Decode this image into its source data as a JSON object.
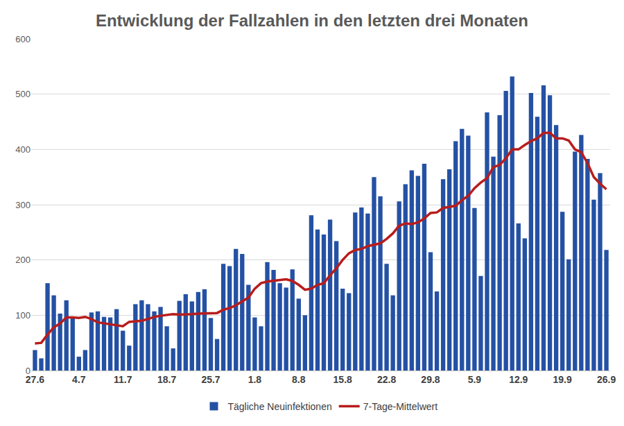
{
  "chart_data": {
    "type": "bar",
    "title": "Entwicklung der Fallzahlen in den letzten drei Monaten",
    "categories": [
      "27.6",
      null,
      null,
      null,
      null,
      null,
      null,
      "4.7",
      null,
      null,
      null,
      null,
      null,
      null,
      "11.7",
      null,
      null,
      null,
      null,
      null,
      null,
      "18.7",
      null,
      null,
      null,
      null,
      null,
      null,
      "25.7",
      null,
      null,
      null,
      null,
      null,
      null,
      "1.8",
      null,
      null,
      null,
      null,
      null,
      null,
      "8.8",
      null,
      null,
      null,
      null,
      null,
      null,
      "15.8",
      null,
      null,
      null,
      null,
      null,
      null,
      "22.8",
      null,
      null,
      null,
      null,
      null,
      null,
      "29.8",
      null,
      null,
      null,
      null,
      null,
      null,
      "5.9",
      null,
      null,
      null,
      null,
      null,
      null,
      "12.9",
      null,
      null,
      null,
      null,
      null,
      null,
      "19.9",
      null,
      null,
      null,
      null,
      null,
      null,
      "26.9"
    ],
    "series": [
      {
        "name": "Tägliche Neuinfektionen",
        "type": "bar",
        "color": "#2451a4",
        "values": [
          37,
          22,
          158,
          136,
          103,
          127,
          95,
          25,
          37,
          105,
          107,
          97,
          96,
          111,
          72,
          45,
          120,
          127,
          120,
          107,
          115,
          80,
          40,
          126,
          138,
          125,
          142,
          147,
          95,
          57,
          193,
          189,
          220,
          211,
          155,
          96,
          80,
          196,
          182,
          158,
          150,
          183,
          130,
          100,
          281,
          255,
          246,
          273,
          234,
          148,
          140,
          286,
          295,
          284,
          350,
          315,
          193,
          136,
          306,
          337,
          362,
          352,
          374,
          214,
          143,
          346,
          364,
          415,
          437,
          425,
          294,
          171,
          467,
          387,
          462,
          506,
          532,
          266,
          239,
          502,
          459,
          516,
          498,
          444,
          287,
          201,
          396,
          426,
          383,
          309,
          357,
          218
        ]
      },
      {
        "name": "7-Tage-Mittelwert",
        "type": "line",
        "color": "#b81c1c",
        "line_style": "solid",
        "values": [
          49,
          50,
          65,
          78,
          85,
          96,
          96,
          95,
          97,
          93,
          87,
          85,
          83,
          82,
          80,
          88,
          89,
          90,
          93,
          97,
          99,
          100,
          102,
          101,
          101,
          102,
          103,
          103,
          104,
          104,
          110,
          113,
          118,
          125,
          132,
          148,
          158,
          161,
          162,
          164,
          165,
          162,
          155,
          146,
          148,
          155,
          158,
          172,
          185,
          200,
          212,
          218,
          220,
          225,
          227,
          230,
          238,
          248,
          262,
          266,
          265,
          268,
          275,
          285,
          286,
          294,
          296,
          298,
          308,
          316,
          330,
          340,
          348,
          368,
          372,
          384,
          400,
          400,
          408,
          415,
          420,
          430,
          430,
          420,
          420,
          416,
          400,
          395,
          375,
          350,
          338,
          328
        ]
      }
    ],
    "ylim": [
      0,
      600
    ],
    "yticks": [
      0,
      100,
      200,
      300,
      400,
      500,
      600
    ],
    "grid": true,
    "legend": "bottom"
  }
}
